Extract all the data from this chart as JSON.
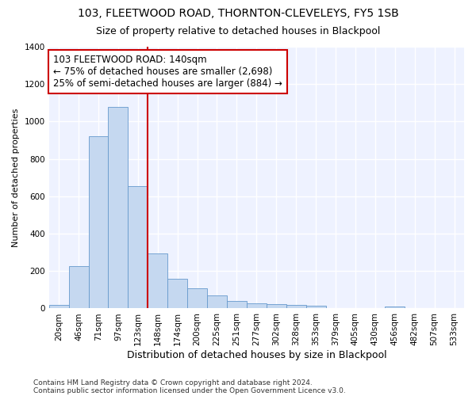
{
  "title1": "103, FLEETWOOD ROAD, THORNTON-CLEVELEYS, FY5 1SB",
  "title2": "Size of property relative to detached houses in Blackpool",
  "xlabel": "Distribution of detached houses by size in Blackpool",
  "ylabel": "Number of detached properties",
  "footnote1": "Contains HM Land Registry data © Crown copyright and database right 2024.",
  "footnote2": "Contains public sector information licensed under the Open Government Licence v3.0.",
  "bar_labels": [
    "20sqm",
    "46sqm",
    "71sqm",
    "97sqm",
    "123sqm",
    "148sqm",
    "174sqm",
    "200sqm",
    "225sqm",
    "251sqm",
    "277sqm",
    "302sqm",
    "328sqm",
    "353sqm",
    "379sqm",
    "405sqm",
    "430sqm",
    "456sqm",
    "482sqm",
    "507sqm",
    "533sqm"
  ],
  "bar_values": [
    18,
    225,
    920,
    1080,
    655,
    295,
    160,
    107,
    70,
    38,
    28,
    25,
    20,
    15,
    0,
    0,
    0,
    10,
    0,
    0,
    0
  ],
  "bar_color": "#c5d8f0",
  "bar_edge_color": "#6699cc",
  "vline_x_idx": 5,
  "vline_color": "#cc0000",
  "annotation_text": "103 FLEETWOOD ROAD: 140sqm\n← 75% of detached houses are smaller (2,698)\n25% of semi-detached houses are larger (884) →",
  "annotation_box_color": "#ffffff",
  "annotation_box_edge": "#cc0000",
  "ylim": [
    0,
    1400
  ],
  "yticks": [
    0,
    200,
    400,
    600,
    800,
    1000,
    1200,
    1400
  ],
  "bg_color": "#eef2ff",
  "grid_color": "#ffffff",
  "title1_fontsize": 10,
  "title2_fontsize": 9,
  "xlabel_fontsize": 9,
  "ylabel_fontsize": 8,
  "tick_fontsize": 7.5,
  "annotation_fontsize": 8.5,
  "footnote_fontsize": 6.5
}
